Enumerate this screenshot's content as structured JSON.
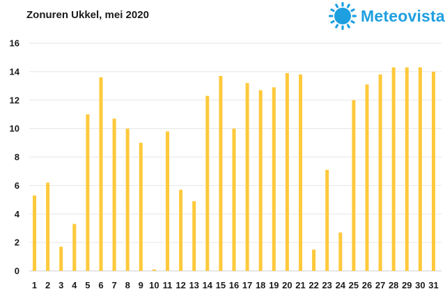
{
  "header": {
    "title": "Zonuren Ukkel, mei 2020"
  },
  "brand": {
    "name": "Meteovista",
    "color": "#1e9fe0",
    "icon": "sun-logo-icon"
  },
  "chart_data": {
    "type": "bar",
    "title": "Zonuren Ukkel, mei 2020",
    "xlabel": "",
    "ylabel": "",
    "categories": [
      "1",
      "2",
      "3",
      "4",
      "5",
      "6",
      "7",
      "8",
      "9",
      "10",
      "11",
      "12",
      "13",
      "14",
      "15",
      "16",
      "17",
      "18",
      "19",
      "20",
      "21",
      "22",
      "23",
      "24",
      "25",
      "26",
      "27",
      "28",
      "29",
      "30",
      "31"
    ],
    "values": [
      5.3,
      6.2,
      1.7,
      3.3,
      11.0,
      13.6,
      10.7,
      10.0,
      9.0,
      0.1,
      9.8,
      5.7,
      4.9,
      12.3,
      13.7,
      10.0,
      13.2,
      12.7,
      12.9,
      13.9,
      13.8,
      1.5,
      7.1,
      2.7,
      12.0,
      13.1,
      13.8,
      14.3,
      14.3,
      14.3,
      14.0
    ],
    "ylim": [
      0,
      16
    ],
    "yticks": [
      0,
      2,
      4,
      6,
      8,
      10,
      12,
      14,
      16
    ],
    "grid": true,
    "legend": "none",
    "bar_color": "#ffc93c"
  }
}
